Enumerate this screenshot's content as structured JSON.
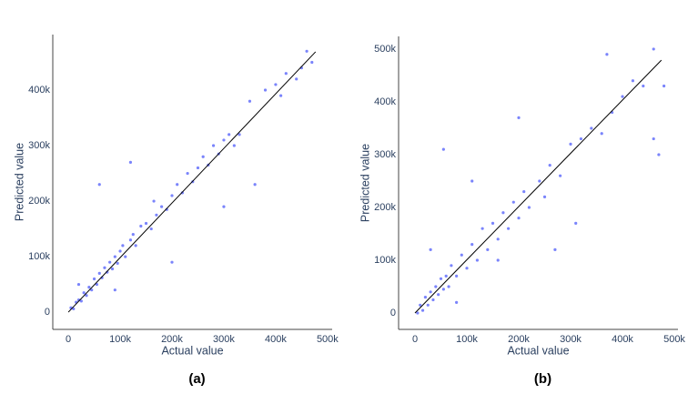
{
  "chart_data": [
    {
      "type": "scatter",
      "caption": "(a)",
      "xlabel": "Actual value",
      "ylabel": "Predicted value",
      "xlim": [
        -30000,
        509000
      ],
      "ylim": [
        -31000,
        500000
      ],
      "xticks": [
        0,
        {
          "value": 100000,
          "label": "100k"
        },
        {
          "value": 200000,
          "label": "200k"
        },
        {
          "value": 300000,
          "label": "300k"
        },
        {
          "value": 400000,
          "label": "400k"
        },
        {
          "value": 500000,
          "label": "500k"
        }
      ],
      "yticks": [
        0,
        {
          "value": 100000,
          "label": "100k"
        },
        {
          "value": 200000,
          "label": "200k"
        },
        {
          "value": 300000,
          "label": "300k"
        },
        {
          "value": 400000,
          "label": "400k"
        }
      ],
      "series": [
        {
          "mode": "markers",
          "color": "#636efa",
          "x": [
            5000,
            10000,
            15000,
            20000,
            25000,
            30000,
            35000,
            40000,
            45000,
            50000,
            55000,
            60000,
            65000,
            70000,
            75000,
            80000,
            85000,
            90000,
            95000,
            100000,
            105000,
            110000,
            120000,
            125000,
            130000,
            140000,
            150000,
            160000,
            165000,
            170000,
            180000,
            190000,
            200000,
            210000,
            220000,
            230000,
            240000,
            250000,
            260000,
            270000,
            280000,
            290000,
            300000,
            310000,
            320000,
            330000,
            350000,
            360000,
            380000,
            400000,
            410000,
            420000,
            440000,
            450000,
            460000,
            470000,
            60000,
            120000,
            200000,
            300000,
            90000,
            20000
          ],
          "values": [
            8000,
            6000,
            18000,
            22000,
            20000,
            35000,
            30000,
            45000,
            40000,
            60000,
            50000,
            70000,
            62000,
            80000,
            72000,
            90000,
            78000,
            100000,
            88000,
            110000,
            120000,
            100000,
            130000,
            140000,
            120000,
            155000,
            160000,
            150000,
            200000,
            175000,
            190000,
            185000,
            210000,
            230000,
            215000,
            250000,
            235000,
            260000,
            280000,
            265000,
            300000,
            285000,
            310000,
            320000,
            300000,
            320000,
            380000,
            230000,
            400000,
            410000,
            390000,
            430000,
            420000,
            440000,
            470000,
            450000,
            230000,
            270000,
            90000,
            190000,
            40000,
            50000
          ]
        },
        {
          "mode": "line",
          "color": "#000000",
          "x": [
            0,
            477000
          ],
          "values": [
            0,
            469000
          ]
        }
      ]
    },
    {
      "type": "scatter",
      "caption": "(b)",
      "xlabel": "Actual value",
      "ylabel": "Predicted value",
      "xlim": [
        -31600,
        507000
      ],
      "ylim": [
        -31000,
        524000
      ],
      "xticks": [
        0,
        {
          "value": 100000,
          "label": "100k"
        },
        {
          "value": 200000,
          "label": "200k"
        },
        {
          "value": 300000,
          "label": "300k"
        },
        {
          "value": 400000,
          "label": "400k"
        },
        {
          "value": 500000,
          "label": "500k"
        }
      ],
      "yticks": [
        0,
        {
          "value": 100000,
          "label": "100k"
        },
        {
          "value": 200000,
          "label": "200k"
        },
        {
          "value": 300000,
          "label": "300k"
        },
        {
          "value": 400000,
          "label": "400k"
        },
        {
          "value": 500000,
          "label": "500k"
        }
      ],
      "series": [
        {
          "mode": "markers",
          "color": "#636efa",
          "x": [
            5000,
            10000,
            15000,
            20000,
            25000,
            30000,
            35000,
            40000,
            45000,
            50000,
            55000,
            60000,
            65000,
            70000,
            80000,
            90000,
            100000,
            110000,
            120000,
            130000,
            140000,
            150000,
            160000,
            170000,
            180000,
            190000,
            200000,
            210000,
            220000,
            240000,
            250000,
            260000,
            280000,
            300000,
            310000,
            320000,
            340000,
            360000,
            380000,
            400000,
            420000,
            440000,
            460000,
            470000,
            480000,
            55000,
            110000,
            160000,
            200000,
            270000,
            30000,
            80000,
            370000,
            460000
          ],
          "values": [
            0,
            15000,
            5000,
            30000,
            15000,
            40000,
            25000,
            50000,
            35000,
            65000,
            45000,
            70000,
            50000,
            90000,
            70000,
            110000,
            85000,
            130000,
            100000,
            160000,
            120000,
            170000,
            140000,
            190000,
            160000,
            210000,
            180000,
            230000,
            200000,
            250000,
            220000,
            280000,
            260000,
            320000,
            170000,
            330000,
            350000,
            340000,
            380000,
            410000,
            440000,
            430000,
            500000,
            300000,
            430000,
            310000,
            250000,
            100000,
            370000,
            120000,
            120000,
            20000,
            490000,
            330000
          ]
        },
        {
          "mode": "line",
          "color": "#000000",
          "x": [
            0,
            475000
          ],
          "values": [
            0,
            479000
          ]
        }
      ]
    }
  ]
}
